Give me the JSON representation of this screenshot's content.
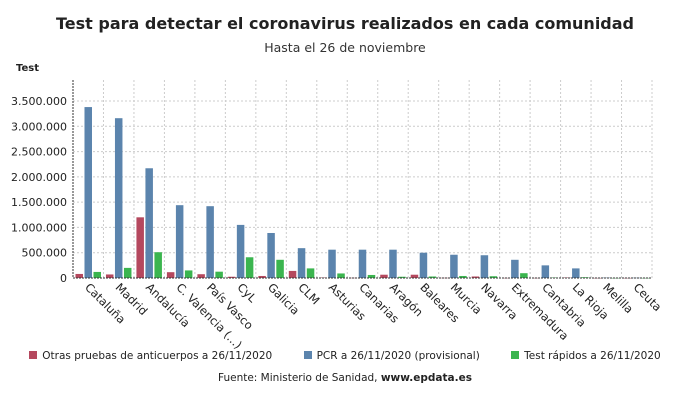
{
  "chart_data": {
    "type": "bar",
    "title": "Test para detectar el coronavirus realizados en cada comunidad",
    "subtitle": "Hasta el 26 de noviembre",
    "ylabel": "Test",
    "ylim": [
      0,
      3500000
    ],
    "yticks": [
      "0",
      "500.000",
      "1.000.000",
      "1.500.000",
      "2.000.000",
      "2.500.000",
      "3.000.000",
      "3.500.000"
    ],
    "grid": true,
    "legend_position": "bottom",
    "categories": [
      "Cataluña",
      "Madrid",
      "Andalucía",
      "C. Valencia (...)",
      "País Vasco",
      "CyL",
      "Galicia",
      "CLM",
      "Asturias",
      "Canarias",
      "Aragón",
      "Baleares",
      "Murcia",
      "Navarra",
      "Extremadura",
      "Cantabria",
      "La Rioja",
      "Melilla",
      "Ceuta"
    ],
    "series": [
      {
        "name": "Otras pruebas de anticuerpos a 26/11/2020",
        "color": "#b5485e",
        "values": [
          80000,
          70000,
          1200000,
          115000,
          75000,
          25000,
          40000,
          140000,
          10000,
          5000,
          65000,
          65000,
          5000,
          30000,
          3000,
          3000,
          10000,
          2000,
          2000
        ]
      },
      {
        "name": "PCR a 26/11/2020 (provisional)",
        "color": "#5b84ad",
        "values": [
          3380000,
          3160000,
          2170000,
          1440000,
          1420000,
          1050000,
          890000,
          590000,
          560000,
          560000,
          560000,
          500000,
          460000,
          450000,
          360000,
          250000,
          190000,
          8000,
          6000
        ]
      },
      {
        "name": "Test rápidos a 26/11/2020",
        "color": "#3bb54f",
        "values": [
          120000,
          200000,
          510000,
          150000,
          125000,
          410000,
          360000,
          190000,
          90000,
          60000,
          25000,
          30000,
          40000,
          35000,
          95000,
          10000,
          15000,
          2000,
          2000
        ]
      }
    ]
  },
  "source": {
    "prefix": "Fuente: Ministerio de Sanidad, ",
    "site": "www.epdata.es"
  }
}
